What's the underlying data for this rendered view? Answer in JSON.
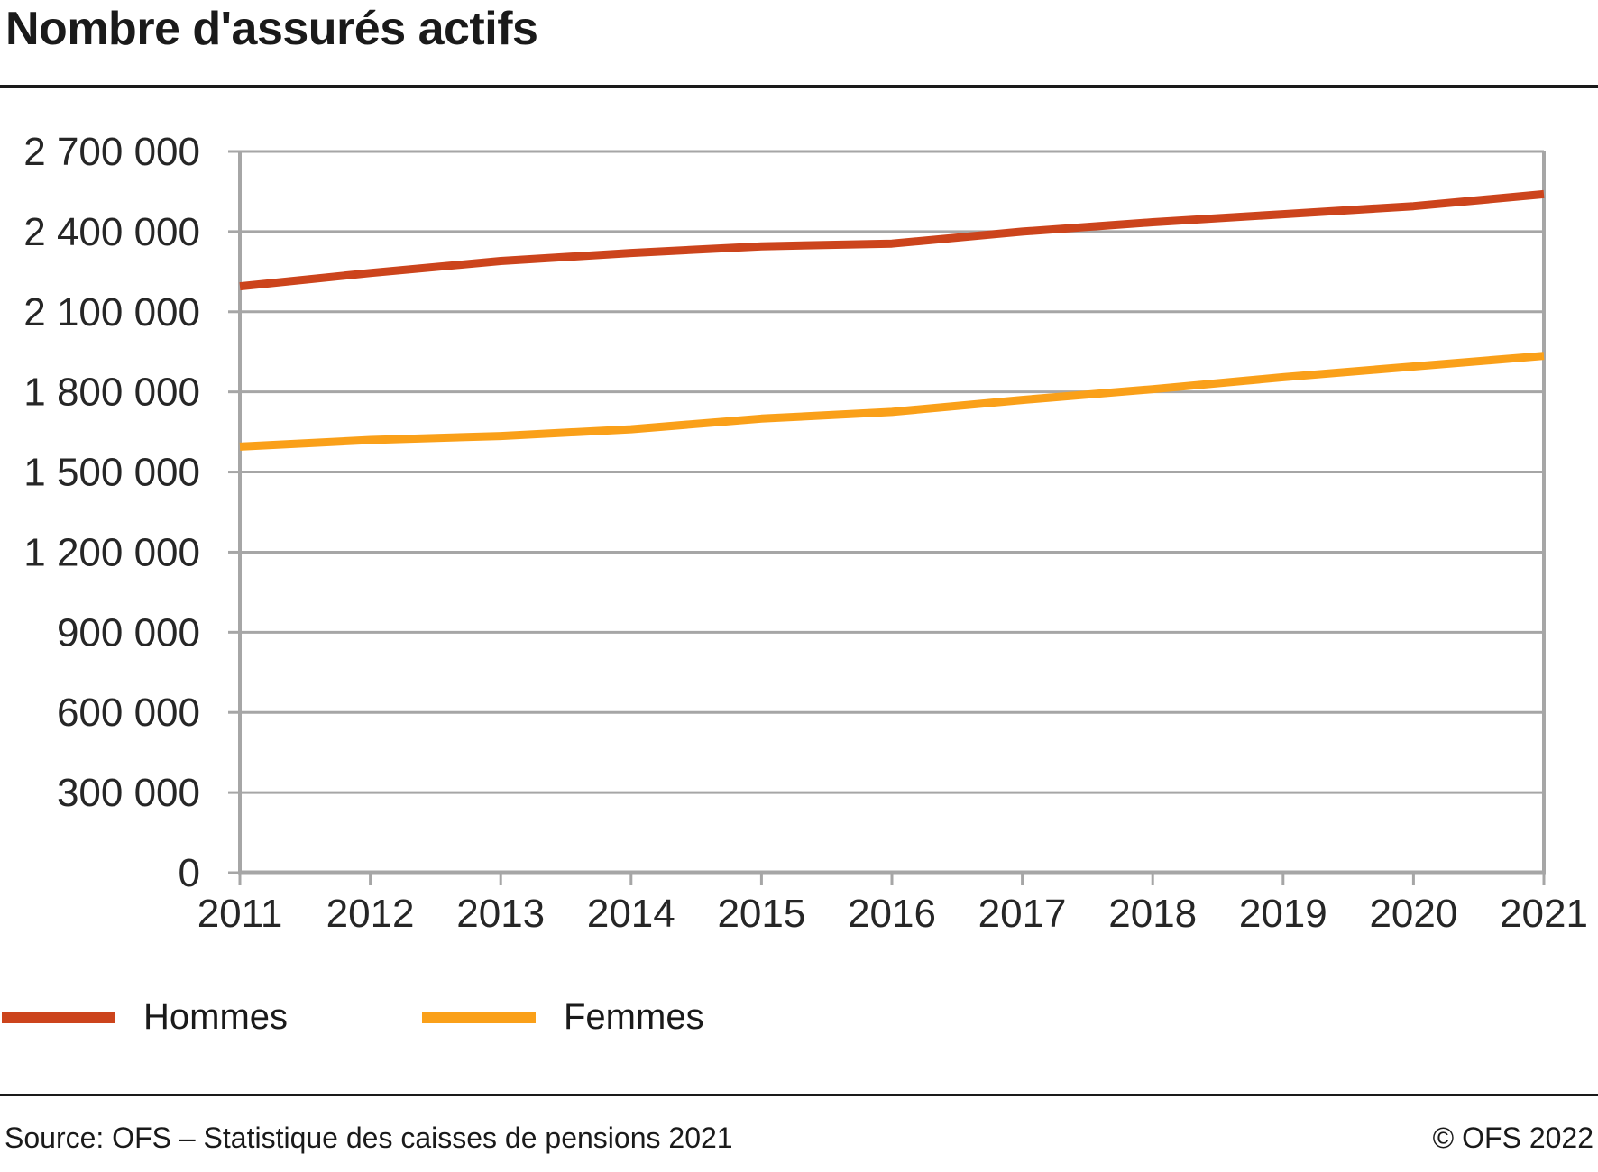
{
  "title": "Nombre d'assurés actifs",
  "legend": {
    "items": [
      {
        "label": "Hommes",
        "color": "#cc441c"
      },
      {
        "label": "Femmes",
        "color": "#faa019"
      }
    ]
  },
  "footer": {
    "source": "Source: OFS – Statistique des caisses de pensions 2021",
    "copyright": "© OFS 2022"
  },
  "chart_data": {
    "type": "line",
    "title": "Nombre d'assurés actifs",
    "x": [
      2011,
      2012,
      2013,
      2014,
      2015,
      2016,
      2017,
      2018,
      2019,
      2020,
      2021
    ],
    "x_tick_labels": [
      "2011",
      "2012",
      "2013",
      "2014",
      "2015",
      "2016",
      "2017",
      "2018",
      "2019",
      "2020",
      "2021"
    ],
    "series": [
      {
        "name": "Hommes",
        "color": "#cc441c",
        "values": [
          2195000,
          2245000,
          2290000,
          2320000,
          2345000,
          2355000,
          2400000,
          2435000,
          2465000,
          2495000,
          2540000
        ]
      },
      {
        "name": "Femmes",
        "color": "#faa019",
        "values": [
          1595000,
          1620000,
          1635000,
          1660000,
          1700000,
          1725000,
          1770000,
          1810000,
          1855000,
          1895000,
          1935000
        ]
      }
    ],
    "ylim": [
      0,
      2700000
    ],
    "ytick_step": 300000,
    "y_tick_labels": [
      "0",
      "300 000",
      "600 000",
      "900 000",
      "1 200 000",
      "1 500 000",
      "1 800 000",
      "2 100 000",
      "2 400 000",
      "2 700 000"
    ],
    "grid": "horizontal-only",
    "axis_color": "#a6a6a6",
    "legend_position": "bottom-left"
  }
}
